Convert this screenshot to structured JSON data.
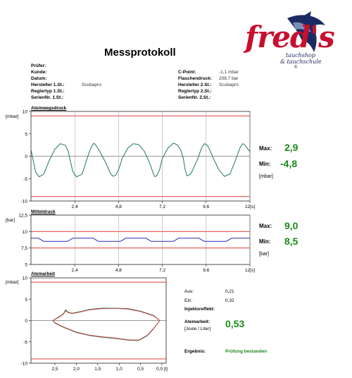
{
  "document": {
    "title": "Messprotokoll",
    "left_fields": [
      {
        "label": "Prüfer:",
        "value": ""
      },
      {
        "label": "Kunde:",
        "value": ""
      },
      {
        "label": "Datum:",
        "value": ""
      },
      {
        "label": "Hersteller 1.St.:",
        "value": "Scubapro"
      },
      {
        "label": "Reglertyp 1.St.:",
        "value": ""
      },
      {
        "label": "SerienNr. 1.St.:",
        "value": ""
      }
    ],
    "right_fields": [
      {
        "label": "C-Point:",
        "value": "-1,1 mbar"
      },
      {
        "label": "Flaschendruck:",
        "value": "208,7 bar"
      },
      {
        "label": "Hersteller 2.St.:",
        "value": "Scubapro"
      },
      {
        "label": "Reglertyp 2.St.:",
        "value": ""
      },
      {
        "label": "SerienNr. 2.St.:",
        "value": ""
      }
    ]
  },
  "logo": {
    "text": "fred's",
    "line1": "tauchshop",
    "line2": "& tauchschule",
    "mark": "®",
    "colors": {
      "red": "#c8102e",
      "navy": "#1b2a63"
    }
  },
  "chart1": {
    "title": "Atemwegsdruck",
    "unit_label": "[mbar]",
    "max_label": "Max:",
    "max_value": "2,9",
    "min_label": "Min:",
    "min_value": "-4,8",
    "side_unit": "[mbar]"
  },
  "chart2": {
    "title": "Mitteldruck",
    "unit_label": "[bar]",
    "max_label": "Max:",
    "max_value": "9,0",
    "min_label": "Min:",
    "min_value": "8,5",
    "side_unit": "[bar]"
  },
  "chart3": {
    "title": "Atemarbeit",
    "unit_label": "[mbar]"
  },
  "results": {
    "aus_label": "Aus:",
    "aus_value": "0,21",
    "ein_label": "Ein:",
    "ein_value": "0,32",
    "injektor_label": "Injektoreffekt:",
    "injektor_value": "",
    "atemarbeit_label": "Atemarbeit:",
    "atemarbeit_unit": "[Joule / Liter]",
    "atemarbeit_value": "0,53",
    "ergebnis_label": "Ergebnis:",
    "ergebnis_value": "Prüfung bestanden"
  },
  "chart_data": [
    {
      "type": "line",
      "title": "Atemwegsdruck",
      "ylabel": "[mbar]",
      "xlabel": "[s]",
      "xlim": [
        0,
        12
      ],
      "ylim": [
        -10,
        10
      ],
      "xticks": [
        "2,4",
        "4,8",
        "7,2",
        "9,6",
        "12[s]"
      ],
      "yticks": [
        "10",
        "5",
        "0",
        "-5",
        "-10"
      ],
      "limits": [
        9,
        -9
      ],
      "series": [
        {
          "color": "#1f7a4f",
          "x": [
            0.0,
            0.1,
            0.25,
            0.45,
            0.7,
            1.0,
            1.3,
            1.6,
            1.9,
            2.05,
            2.15,
            2.3,
            2.5,
            2.8,
            3.0,
            3.2,
            3.35,
            3.45,
            3.55,
            3.75,
            4.1,
            4.35,
            4.5,
            4.65,
            4.8,
            5.0,
            5.3,
            5.6,
            5.9,
            6.2,
            6.5,
            6.7,
            6.8,
            6.9,
            7.05,
            7.2,
            7.5,
            7.8,
            8.0,
            8.2,
            8.35,
            8.45,
            8.55,
            8.75,
            9.1,
            9.35,
            9.5,
            9.65,
            9.8,
            10.0,
            10.3,
            10.6,
            10.9,
            11.2,
            11.45,
            11.6,
            11.7,
            11.85,
            12.0
          ],
          "y": [
            1.5,
            -0.5,
            -3.5,
            -4.6,
            -4.0,
            -1.0,
            1.5,
            2.8,
            2.4,
            1.0,
            -1.0,
            -3.5,
            -4.6,
            -4.0,
            -1.5,
            1.0,
            2.4,
            2.9,
            2.5,
            1.2,
            -1.5,
            -3.8,
            -4.5,
            -4.2,
            -3.0,
            -0.5,
            1.8,
            2.8,
            2.6,
            1.2,
            -1.5,
            -3.8,
            -4.6,
            -4.3,
            -3.0,
            -0.5,
            1.8,
            2.9,
            2.6,
            1.5,
            -0.5,
            -3.0,
            -4.4,
            -4.0,
            -1.0,
            1.8,
            2.8,
            2.5,
            1.4,
            -0.5,
            -3.0,
            -4.5,
            -4.0,
            -1.0,
            1.8,
            2.8,
            2.6,
            1.8,
            1.0
          ]
        }
      ]
    },
    {
      "type": "line",
      "title": "Mitteldruck",
      "ylabel": "[bar]",
      "xlabel": "[s]",
      "xlim": [
        0,
        12
      ],
      "ylim": [
        5,
        12.5
      ],
      "xticks": [
        "2,4",
        "4,8",
        "7,2",
        "9,6",
        "12[s]"
      ],
      "yticks": [
        "12,5",
        "10",
        "7,5",
        "5"
      ],
      "limits": [
        10,
        7.5
      ],
      "series": [
        {
          "color": "#2a2ab8",
          "x": [
            0,
            0.4,
            0.7,
            1.5,
            2.0,
            2.3,
            3.0,
            3.4,
            3.7,
            4.4,
            4.9,
            5.2,
            5.9,
            6.3,
            6.6,
            7.3,
            7.8,
            8.1,
            8.8,
            9.2,
            9.5,
            10.2,
            10.7,
            11.0,
            12.0
          ],
          "y": [
            9.0,
            9.0,
            8.5,
            8.5,
            8.5,
            9.0,
            9.0,
            9.0,
            8.5,
            8.5,
            8.5,
            9.0,
            9.0,
            9.0,
            8.5,
            8.5,
            8.5,
            9.0,
            9.0,
            9.0,
            8.5,
            8.5,
            8.5,
            9.0,
            9.0
          ]
        }
      ]
    },
    {
      "type": "line",
      "title": "Atemarbeit",
      "ylabel": "[mbar]",
      "xlabel": "[l]",
      "xlim": [
        2.5,
        0.0
      ],
      "ylim": [
        -10,
        10
      ],
      "xticks": [
        "2,5",
        "2,0",
        "1,5",
        "1,0",
        "0,5",
        "0,0 [l]"
      ],
      "yticks": [
        "10",
        "5",
        "0",
        "-5",
        "-10"
      ],
      "limits": [
        9,
        -9
      ],
      "series": [
        {
          "color": "#2e6b3a",
          "x": [
            0.05,
            0.2,
            0.5,
            0.8,
            1.1,
            1.4,
            1.7,
            1.9,
            2.1,
            2.2,
            2.25,
            2.3,
            2.4,
            2.55,
            2.5,
            2.3,
            2.0,
            1.7,
            1.4,
            1.1,
            0.8,
            0.55,
            0.35,
            0.2,
            0.05
          ],
          "y": [
            0.0,
            1.2,
            2.2,
            2.8,
            2.9,
            2.9,
            2.6,
            2.1,
            1.7,
            2.0,
            2.5,
            1.6,
            0.9,
            0.0,
            -0.6,
            -1.6,
            -2.8,
            -3.5,
            -3.9,
            -4.2,
            -4.6,
            -4.7,
            -3.6,
            -2.0,
            0.0
          ]
        },
        {
          "color": "#c85050",
          "x": [
            0.05,
            0.2,
            0.5,
            0.8,
            1.1,
            1.4,
            1.7,
            1.9,
            2.1,
            2.2,
            2.25,
            2.3,
            2.4,
            2.55,
            2.5,
            2.3,
            2.0,
            1.7,
            1.4,
            1.1,
            0.8,
            0.55,
            0.35,
            0.2,
            0.05
          ],
          "y": [
            0.0,
            1.1,
            2.1,
            2.7,
            2.85,
            2.8,
            2.5,
            2.0,
            1.6,
            1.9,
            2.3,
            1.5,
            0.8,
            0.0,
            -0.5,
            -1.5,
            -2.7,
            -3.4,
            -3.8,
            -4.1,
            -4.5,
            -4.6,
            -3.5,
            -1.9,
            0.0
          ]
        }
      ]
    }
  ]
}
